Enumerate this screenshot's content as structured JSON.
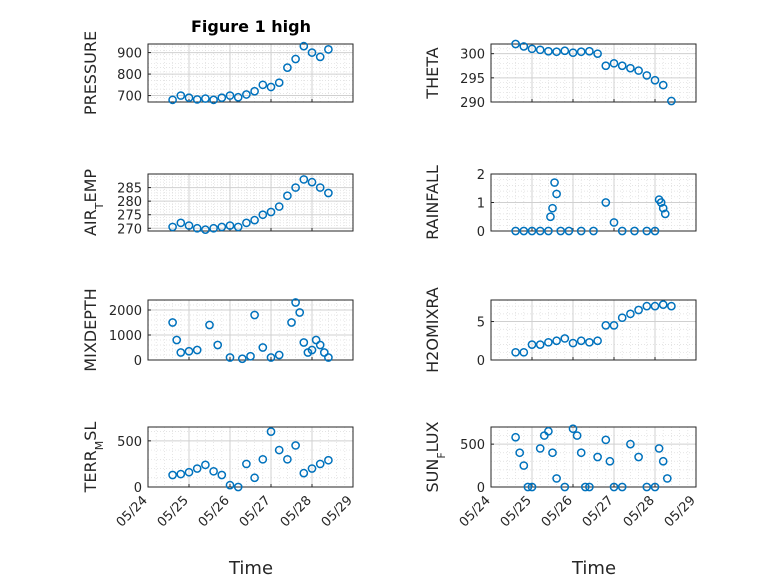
{
  "figure_title": "Figure 1 high",
  "xlabel": "Time",
  "x_ticks": [
    "05/24",
    "05/25",
    "05/26",
    "05/27",
    "05/28",
    "05/29"
  ],
  "marker_color": "#0072BD",
  "chart_data": [
    {
      "type": "scatter",
      "title": "Figure 1 high",
      "ylabel": "PRESSURE",
      "ylim": [
        670,
        940
      ],
      "yticks": [
        700,
        800,
        900
      ],
      "grid": true,
      "x": [
        0.6,
        0.8,
        1.0,
        1.2,
        1.4,
        1.6,
        1.8,
        2.0,
        2.2,
        2.4,
        2.6,
        2.8,
        3.0,
        3.2,
        3.4,
        3.6,
        3.8,
        4.0,
        4.2,
        4.4
      ],
      "y": [
        680,
        700,
        690,
        682,
        686,
        680,
        690,
        700,
        692,
        705,
        720,
        750,
        740,
        760,
        830,
        870,
        930,
        900,
        880,
        915
      ]
    },
    {
      "type": "scatter",
      "ylabel": "THETA",
      "ylim": [
        290,
        302
      ],
      "yticks": [
        290,
        295,
        300
      ],
      "grid": true,
      "x": [
        0.6,
        0.8,
        1.0,
        1.2,
        1.4,
        1.6,
        1.8,
        2.0,
        2.2,
        2.4,
        2.6,
        2.8,
        3.0,
        3.2,
        3.4,
        3.6,
        3.8,
        4.0,
        4.2,
        4.4
      ],
      "y": [
        302,
        301.5,
        301,
        300.8,
        300.5,
        300.4,
        300.6,
        300.2,
        300.4,
        300.5,
        300,
        297.5,
        298,
        297.5,
        297,
        296.5,
        295.5,
        294.5,
        293.5,
        290.2
      ]
    },
    {
      "type": "scatter",
      "ylabel": "AIR_TEMP",
      "ylim": [
        269,
        290
      ],
      "yticks": [
        270,
        275,
        280,
        285
      ],
      "grid": true,
      "x": [
        0.6,
        0.8,
        1.0,
        1.2,
        1.4,
        1.6,
        1.8,
        2.0,
        2.2,
        2.4,
        2.6,
        2.8,
        3.0,
        3.2,
        3.4,
        3.6,
        3.8,
        4.0,
        4.2,
        4.4
      ],
      "y": [
        270.5,
        272,
        271,
        270,
        269.5,
        270,
        270.5,
        271,
        270.5,
        272,
        273,
        275,
        276,
        278,
        282,
        285,
        288,
        287,
        285,
        283
      ]
    },
    {
      "type": "scatter",
      "ylabel": "RAINFALL",
      "ylim": [
        0,
        2
      ],
      "yticks": [
        0,
        1,
        2
      ],
      "grid": true,
      "x": [
        0.6,
        0.8,
        1.0,
        1.2,
        1.4,
        1.45,
        1.5,
        1.55,
        1.6,
        1.7,
        1.9,
        2.2,
        2.5,
        2.8,
        3.0,
        3.2,
        3.5,
        3.8,
        4.0,
        4.1,
        4.15,
        4.2,
        4.25
      ],
      "y": [
        0,
        0,
        0,
        0,
        0,
        0.5,
        0.8,
        1.7,
        1.3,
        0,
        0,
        0,
        0,
        1.0,
        0.3,
        0,
        0,
        0,
        0,
        1.1,
        1.0,
        0.8,
        0.6
      ]
    },
    {
      "type": "scatter",
      "ylabel": "MIXDEPTH",
      "ylim": [
        0,
        2400
      ],
      "yticks": [
        0,
        1000,
        2000
      ],
      "grid": true,
      "x": [
        0.6,
        0.7,
        0.8,
        1.0,
        1.2,
        1.5,
        1.7,
        2.0,
        2.3,
        2.5,
        2.6,
        2.8,
        3.0,
        3.2,
        3.5,
        3.6,
        3.7,
        3.8,
        3.9,
        4.0,
        4.1,
        4.2,
        4.3,
        4.4
      ],
      "y": [
        1500,
        800,
        300,
        350,
        400,
        1400,
        600,
        100,
        50,
        150,
        1800,
        500,
        100,
        200,
        1500,
        2300,
        1900,
        700,
        300,
        400,
        800,
        600,
        300,
        100
      ]
    },
    {
      "type": "scatter",
      "ylabel": "H2OMIXRA",
      "ylim": [
        0,
        7.8
      ],
      "yticks": [
        0,
        5
      ],
      "grid": true,
      "x": [
        0.6,
        0.8,
        1.0,
        1.2,
        1.4,
        1.6,
        1.8,
        2.0,
        2.2,
        2.4,
        2.6,
        2.8,
        3.0,
        3.2,
        3.4,
        3.6,
        3.8,
        4.0,
        4.2,
        4.4
      ],
      "y": [
        1,
        1,
        2,
        2,
        2.3,
        2.5,
        2.8,
        2.2,
        2.5,
        2.3,
        2.5,
        4.5,
        4.5,
        5.5,
        6,
        6.5,
        7,
        7,
        7.2,
        7
      ]
    },
    {
      "type": "scatter",
      "ylabel": "TERR_MSL",
      "ylim": [
        0,
        650
      ],
      "yticks": [
        0,
        500
      ],
      "grid": true,
      "x": [
        0.6,
        0.8,
        1.0,
        1.2,
        1.4,
        1.6,
        1.8,
        2.0,
        2.2,
        2.4,
        2.6,
        2.8,
        3.0,
        3.2,
        3.4,
        3.6,
        3.8,
        4.0,
        4.2,
        4.4
      ],
      "y": [
        130,
        140,
        160,
        200,
        240,
        170,
        130,
        20,
        0,
        250,
        100,
        300,
        600,
        400,
        300,
        450,
        150,
        200,
        250,
        290
      ]
    },
    {
      "type": "scatter",
      "ylabel": "SUN_FLUX",
      "ylim": [
        0,
        700
      ],
      "yticks": [
        0,
        500
      ],
      "grid": true,
      "x": [
        0.6,
        0.7,
        0.8,
        0.9,
        1.0,
        1.2,
        1.3,
        1.4,
        1.5,
        1.6,
        1.8,
        2.0,
        2.1,
        2.2,
        2.3,
        2.4,
        2.6,
        2.8,
        2.9,
        3.0,
        3.2,
        3.4,
        3.6,
        3.8,
        4.0,
        4.1,
        4.2,
        4.3
      ],
      "y": [
        580,
        400,
        250,
        0,
        0,
        450,
        600,
        650,
        400,
        100,
        0,
        680,
        600,
        400,
        0,
        0,
        350,
        550,
        300,
        0,
        0,
        500,
        350,
        0,
        0,
        450,
        300,
        100
      ]
    }
  ]
}
